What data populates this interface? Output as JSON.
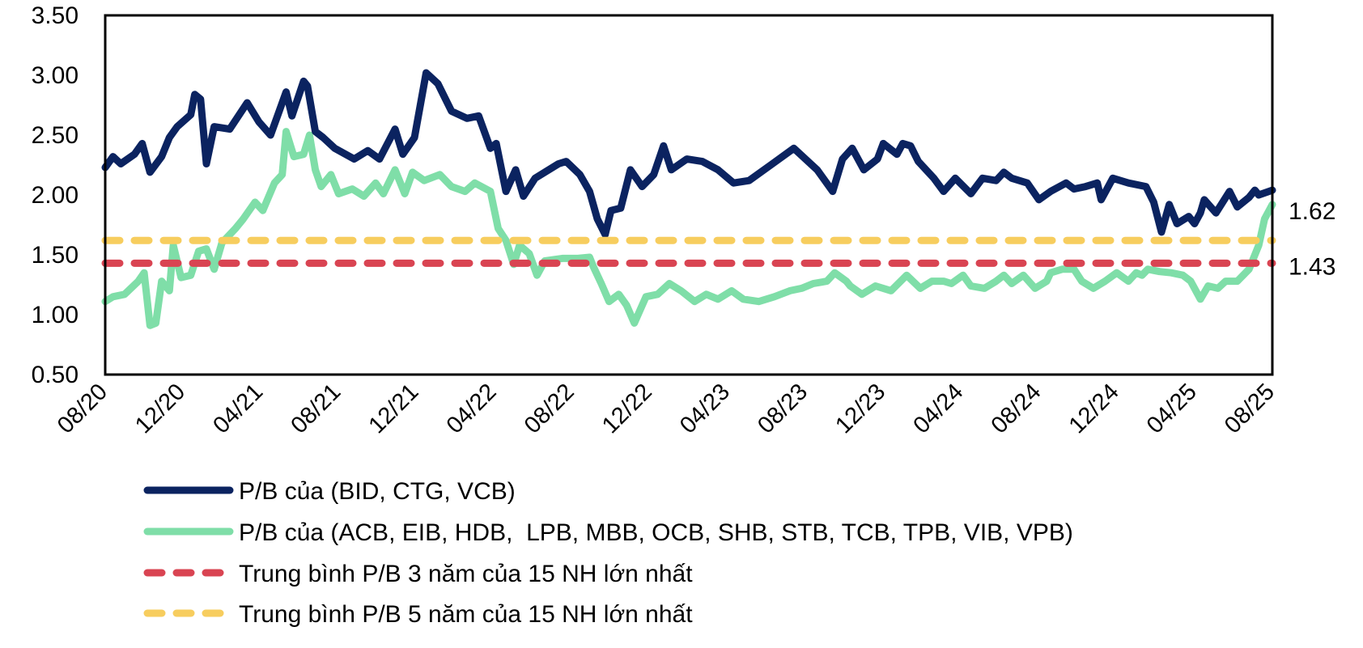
{
  "chart_data": {
    "type": "line",
    "title": "",
    "xlabel": "",
    "ylabel": "",
    "ylim": [
      0.5,
      3.5
    ],
    "yticks": [
      "3.50",
      "3.00",
      "2.50",
      "2.00",
      "1.50",
      "1.00",
      "0.50"
    ],
    "ytick_values": [
      3.5,
      3.0,
      2.5,
      2.0,
      1.5,
      1.0,
      0.5
    ],
    "x_unit": "months since 08/2020",
    "xlim": [
      0,
      60
    ],
    "xticks": [
      "08/20",
      "12/20",
      "04/21",
      "08/21",
      "12/21",
      "04/22",
      "08/22",
      "12/22",
      "04/23",
      "08/23",
      "12/23",
      "04/24",
      "08/24",
      "12/24",
      "04/25",
      "08/25"
    ],
    "xtick_values": [
      0,
      4,
      8,
      12,
      16,
      20,
      24,
      28,
      32,
      36,
      40,
      44,
      48,
      52,
      56,
      60
    ],
    "grid": false,
    "legend_position": "bottom",
    "series": [
      {
        "name": "P/B của (BID, CTG, VCB)",
        "color": "#0b2360",
        "style": "solid",
        "x": [
          0,
          0.4,
          0.8,
          1.5,
          1.9,
          2.3,
          2.9,
          3.3,
          3.7,
          4.4,
          4.6,
          4.9,
          5.2,
          5.6,
          6.4,
          7.3,
          7.9,
          8.5,
          9.3,
          9.6,
          10.2,
          10.4,
          10.8,
          11.2,
          11.8,
          12.8,
          13.5,
          14.1,
          14.9,
          15.3,
          15.9,
          16.5,
          17.1,
          17.8,
          18.6,
          19.2,
          19.8,
          20.1,
          20.6,
          21.1,
          21.5,
          22.1,
          23.3,
          23.7,
          24.4,
          24.9,
          25.3,
          25.7,
          26.0,
          26.5,
          27.0,
          27.6,
          28.2,
          28.7,
          29.1,
          29.9,
          30.7,
          31.5,
          32.3,
          33.1,
          34.3,
          35.4,
          36.6,
          37.4,
          37.9,
          38.4,
          39.0,
          39.7,
          40.0,
          40.7,
          41.0,
          41.4,
          41.8,
          42.2,
          42.6,
          43.1,
          43.7,
          44.5,
          45.1,
          45.8,
          46.2,
          46.6,
          47.4,
          48.0,
          48.6,
          49.4,
          49.8,
          50.4,
          51.0,
          51.2,
          51.8,
          52.6,
          53.5,
          53.9,
          54.3,
          54.7,
          55.1,
          55.7,
          56.0,
          56.3,
          56.5,
          57.1,
          57.8,
          58.2,
          58.8,
          59.1,
          59.3,
          60.0
        ],
        "values": [
          2.23,
          2.32,
          2.26,
          2.34,
          2.43,
          2.19,
          2.32,
          2.48,
          2.57,
          2.67,
          2.84,
          2.8,
          2.26,
          2.57,
          2.55,
          2.77,
          2.61,
          2.5,
          2.86,
          2.66,
          2.95,
          2.91,
          2.53,
          2.48,
          2.39,
          2.3,
          2.37,
          2.3,
          2.55,
          2.34,
          2.48,
          3.02,
          2.93,
          2.7,
          2.64,
          2.66,
          2.39,
          2.43,
          2.03,
          2.21,
          1.99,
          2.14,
          2.26,
          2.28,
          2.17,
          2.03,
          1.8,
          1.67,
          1.87,
          1.89,
          2.21,
          2.07,
          2.17,
          2.41,
          2.21,
          2.3,
          2.28,
          2.21,
          2.1,
          2.12,
          2.26,
          2.39,
          2.21,
          2.03,
          2.3,
          2.39,
          2.21,
          2.3,
          2.43,
          2.34,
          2.43,
          2.41,
          2.28,
          2.21,
          2.14,
          2.03,
          2.14,
          2.01,
          2.14,
          2.12,
          2.19,
          2.14,
          2.1,
          1.96,
          2.03,
          2.1,
          2.05,
          2.07,
          2.1,
          1.96,
          2.14,
          2.1,
          2.07,
          1.94,
          1.69,
          1.92,
          1.76,
          1.82,
          1.76,
          1.85,
          1.96,
          1.85,
          2.03,
          1.9,
          1.98,
          2.04,
          2.0,
          2.04
        ]
      },
      {
        "name": "P/B của (ACB, EIB, HDB,  LPB, MBB, OCB, SHB, STB, TCB, TPB, VIB, VPB)",
        "color": "#7fdea8",
        "style": "solid",
        "x": [
          0,
          0.4,
          1.0,
          1.7,
          2.0,
          2.3,
          2.6,
          2.9,
          3.3,
          3.5,
          3.9,
          4.4,
          4.8,
          5.2,
          5.6,
          6.0,
          6.7,
          7.1,
          7.7,
          8.1,
          8.7,
          9.1,
          9.3,
          9.7,
          10.2,
          10.5,
          10.8,
          11.1,
          11.6,
          12.0,
          12.7,
          13.3,
          13.9,
          14.3,
          14.9,
          15.4,
          15.8,
          16.4,
          17.2,
          17.8,
          18.5,
          19.0,
          19.8,
          20.2,
          20.6,
          21.0,
          21.3,
          21.8,
          22.2,
          22.6,
          23.5,
          24.3,
          24.9,
          25.1,
          25.5,
          25.9,
          26.4,
          26.8,
          27.2,
          27.8,
          28.4,
          29.0,
          29.6,
          30.3,
          30.9,
          31.5,
          32.2,
          32.8,
          33.6,
          34.4,
          35.2,
          35.8,
          36.4,
          37.1,
          37.5,
          38.1,
          38.3,
          38.9,
          39.6,
          40.4,
          41.2,
          41.9,
          42.5,
          43.1,
          43.5,
          44.1,
          44.5,
          45.2,
          45.8,
          46.2,
          46.6,
          47.2,
          47.8,
          48.4,
          48.6,
          49.2,
          49.8,
          50.2,
          50.8,
          51.4,
          52.0,
          52.6,
          53.0,
          53.3,
          53.6,
          54.2,
          54.8,
          55.4,
          55.8,
          56.3,
          56.7,
          57.2,
          57.6,
          58.2,
          58.8,
          59.3,
          59.6,
          60.0
        ],
        "values": [
          1.11,
          1.15,
          1.17,
          1.28,
          1.35,
          0.91,
          0.93,
          1.28,
          1.2,
          1.58,
          1.31,
          1.33,
          1.53,
          1.55,
          1.38,
          1.6,
          1.72,
          1.8,
          1.94,
          1.87,
          2.1,
          2.17,
          2.53,
          2.32,
          2.34,
          2.5,
          2.21,
          2.07,
          2.17,
          2.01,
          2.05,
          1.99,
          2.1,
          2.01,
          2.21,
          2.01,
          2.19,
          2.12,
          2.17,
          2.07,
          2.03,
          2.1,
          2.03,
          1.72,
          1.62,
          1.42,
          1.58,
          1.51,
          1.33,
          1.45,
          1.47,
          1.47,
          1.48,
          1.4,
          1.26,
          1.11,
          1.17,
          1.08,
          0.93,
          1.15,
          1.17,
          1.26,
          1.2,
          1.11,
          1.17,
          1.13,
          1.2,
          1.13,
          1.11,
          1.15,
          1.2,
          1.22,
          1.26,
          1.28,
          1.35,
          1.28,
          1.24,
          1.17,
          1.24,
          1.2,
          1.33,
          1.22,
          1.28,
          1.28,
          1.26,
          1.33,
          1.24,
          1.22,
          1.28,
          1.33,
          1.26,
          1.33,
          1.22,
          1.28,
          1.35,
          1.38,
          1.38,
          1.28,
          1.22,
          1.28,
          1.35,
          1.28,
          1.35,
          1.33,
          1.38,
          1.36,
          1.35,
          1.33,
          1.28,
          1.13,
          1.24,
          1.22,
          1.28,
          1.28,
          1.38,
          1.58,
          1.8,
          1.92
        ]
      },
      {
        "name": "Trung bình P/B 3 năm của 15 NH lớn nhất",
        "color": "#d94452",
        "style": "dashed",
        "constant": 1.43
      },
      {
        "name": "Trung bình P/B 5 năm của 15 NH lớn nhất",
        "color": "#f7cd5e",
        "style": "dashed",
        "constant": 1.62
      }
    ],
    "annotations": [
      {
        "text": "1.62",
        "series": "Trung bình P/B 5 năm của 15 NH lớn nhất"
      },
      {
        "text": "1.43",
        "series": "Trung bình P/B 3 năm của 15 NH lớn nhất"
      }
    ]
  }
}
